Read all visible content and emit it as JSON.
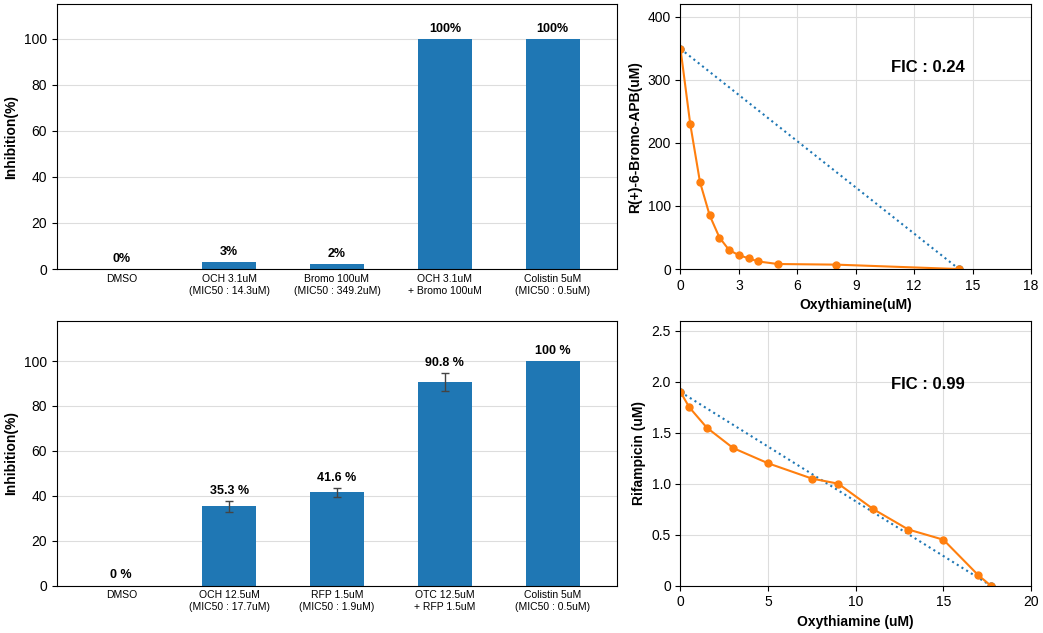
{
  "chart_data": [
    {
      "type": "bar",
      "categories": [
        "DMSO",
        "OCH 3.1uM\n(MIC50 : 14.3uM)",
        "Bromo 100uM\n(MIC50 : 349.2uM)",
        "OCH 3.1uM\n+ Bromo 100uM",
        "Colistin 5uM\n(MIC50 : 0.5uM)"
      ],
      "values": [
        0,
        3,
        2,
        100,
        100
      ],
      "errors": [
        0,
        0,
        0,
        0,
        0
      ],
      "value_labels": [
        "0%",
        "3%",
        "2%",
        "100%",
        "100%"
      ],
      "data_labels": true,
      "ylabel": "Inhibition(%)",
      "ylim": [
        0,
        115
      ],
      "yticks": [
        0,
        20,
        40,
        60,
        80,
        100
      ],
      "grid": "y"
    },
    {
      "type": "line",
      "title": "FIC : 0.24",
      "xlabel": "Oxythiamine(uM)",
      "ylabel": "R(+)-6-Bromo-APB(uM)",
      "xlim": [
        0,
        18
      ],
      "ylim": [
        0,
        420
      ],
      "xticks": [
        0,
        3,
        6,
        9,
        12,
        15,
        18
      ],
      "yticks": [
        0,
        100,
        200,
        300,
        400
      ],
      "grid": true,
      "series": [
        {
          "x": [
            0,
            14.3
          ],
          "values": [
            349.2,
            0
          ],
          "line_style": "dotted",
          "marker": "o"
        },
        {
          "x": [
            0,
            0.5,
            1.0,
            1.5,
            2.0,
            2.5,
            3.0,
            3.5,
            4.0,
            5.0,
            8.0,
            14.3
          ],
          "values": [
            349.2,
            230,
            138,
            85,
            50,
            30,
            22,
            17,
            12,
            8,
            7,
            0
          ],
          "line_style": "solid",
          "marker": "o"
        }
      ]
    },
    {
      "type": "bar",
      "categories": [
        "DMSO",
        "OCH 12.5uM\n(MIC50 : 17.7uM)",
        "RFP 1.5uM\n(MIC50 : 1.9uM)",
        "OTC 12.5uM\n+ RFP 1.5uM",
        "Colistin 5uM\n(MIC50 : 0.5uM)"
      ],
      "values": [
        0,
        35.3,
        41.6,
        90.8,
        100
      ],
      "errors": [
        0,
        2.5,
        2.0,
        4.0,
        0
      ],
      "value_labels": [
        "0 %",
        "35.3 %",
        "41.6 %",
        "90.8 %",
        "100 %"
      ],
      "data_labels": true,
      "ylabel": "Inhibition(%)",
      "ylim": [
        0,
        118
      ],
      "yticks": [
        0,
        20,
        40,
        60,
        80,
        100
      ],
      "grid": "y"
    },
    {
      "type": "line",
      "title": "FIC : 0.99",
      "xlabel": "Oxythiamine (uM)",
      "ylabel": "Rifampicin (uM)",
      "xlim": [
        0,
        20
      ],
      "ylim": [
        0,
        2.6
      ],
      "xticks": [
        0,
        5,
        10,
        15,
        20
      ],
      "yticks": [
        {
          "value": 0.0,
          "label": "0"
        },
        0.5,
        1.0,
        1.5,
        2.0,
        2.5
      ],
      "grid": true,
      "series": [
        {
          "x": [
            0,
            17.7
          ],
          "values": [
            1.9,
            0
          ],
          "line_style": "dotted",
          "marker": "o"
        },
        {
          "x": [
            0,
            0.5,
            1.5,
            3.0,
            5.0,
            7.5,
            9.0,
            11.0,
            13.0,
            15.0,
            17.0,
            17.7
          ],
          "values": [
            1.9,
            1.75,
            1.55,
            1.35,
            1.2,
            1.05,
            1.0,
            0.75,
            0.55,
            0.45,
            0.1,
            0
          ],
          "line_style": "solid",
          "marker": "o"
        }
      ]
    }
  ]
}
